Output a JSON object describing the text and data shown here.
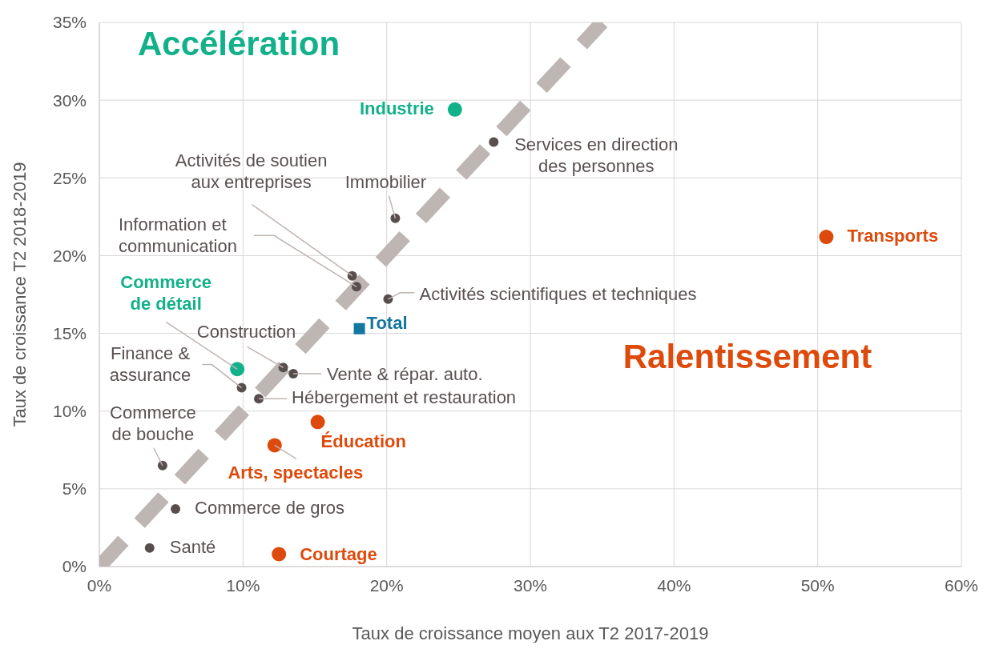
{
  "chart_data": {
    "type": "scatter",
    "xlabel": "Taux de croissance moyen aux T2 2017-2019",
    "ylabel": "Taux de croissance T2 2018-2019",
    "xlim": [
      0,
      60
    ],
    "xticks": [
      {
        "value": 0,
        "label": "0%"
      },
      {
        "value": 10,
        "label": "10%"
      },
      {
        "value": 20,
        "label": "20%"
      },
      {
        "value": 30,
        "label": "30%"
      },
      {
        "value": 40,
        "label": "40%"
      },
      {
        "value": 50,
        "label": "50%"
      },
      {
        "value": 60,
        "label": "60%"
      }
    ],
    "ylim": [
      0,
      35
    ],
    "yticks": [
      {
        "value": 0,
        "label": "0%"
      },
      {
        "value": 5,
        "label": "5%"
      },
      {
        "value": 10,
        "label": "10%"
      },
      {
        "value": 15,
        "label": "15%"
      },
      {
        "value": 20,
        "label": "20%"
      },
      {
        "value": 25,
        "label": "25%"
      },
      {
        "value": 30,
        "label": "30%"
      },
      {
        "value": 35,
        "label": "35%"
      }
    ],
    "grid": true,
    "legend": false,
    "series": [
      {
        "type": "line",
        "color": "#bdb6b3",
        "line_style": "dashed",
        "marker": "none",
        "x": [
          0,
          35
        ],
        "values": [
          0,
          35
        ]
      },
      {
        "color": "#13b18a",
        "marker": "circle",
        "x": [
          24.75,
          9.6
        ],
        "values": [
          29.4,
          12.7
        ]
      },
      {
        "color": "#dd4a0b",
        "marker": "circle",
        "x": [
          50.6,
          15.2,
          12.2,
          12.5
        ],
        "values": [
          21.2,
          9.3,
          7.8,
          0.8
        ]
      },
      {
        "color": "#584e4e",
        "marker": "circle",
        "x": [
          27.45,
          20.6,
          17.6,
          17.9,
          20.1,
          12.8,
          13.5,
          9.9,
          11.1,
          4.4,
          5.3,
          3.5
        ],
        "values": [
          27.3,
          22.4,
          18.7,
          18.0,
          17.2,
          12.8,
          12.4,
          11.5,
          10.8,
          6.5,
          3.7,
          1.2
        ]
      },
      {
        "color": "#14779d",
        "marker": "square",
        "x": [
          18.1
        ],
        "values": [
          15.3
        ]
      }
    ],
    "annotations": [
      "Accélération",
      "Ralentissement",
      {
        "text": "Industrie",
        "x": 24.75,
        "y": 29.4
      },
      {
        "text": "Services en direction des personnes",
        "x": 27.45,
        "y": 27.3
      },
      {
        "text": "Immobilier",
        "x": 20.6,
        "y": 22.4
      },
      {
        "text": "Activités de soutien aux entreprises",
        "x": 17.6,
        "y": 18.7
      },
      {
        "text": "Information et communication",
        "x": 17.9,
        "y": 18.0
      },
      {
        "text": "Activités scientifiques et techniques",
        "x": 20.1,
        "y": 17.2
      },
      {
        "text": "Total",
        "x": 18.1,
        "y": 15.3
      },
      {
        "text": "Commerce de détail",
        "x": 9.6,
        "y": 12.7
      },
      {
        "text": "Construction",
        "x": 12.8,
        "y": 12.8
      },
      {
        "text": "Vente & répar. auto.",
        "x": 13.5,
        "y": 12.4
      },
      {
        "text": "Finance & assurance",
        "x": 9.9,
        "y": 11.5
      },
      {
        "text": "Hébergement et restauration",
        "x": 11.1,
        "y": 10.8
      },
      {
        "text": "Commerce de bouche",
        "x": 4.4,
        "y": 6.5
      },
      {
        "text": "Éducation",
        "x": 15.2,
        "y": 9.3
      },
      {
        "text": "Arts, spectacles",
        "x": 12.2,
        "y": 7.8
      },
      {
        "text": "Commerce de gros",
        "x": 5.3,
        "y": 3.7
      },
      {
        "text": "Santé",
        "x": 3.5,
        "y": 1.2
      },
      {
        "text": "Courtage",
        "x": 12.5,
        "y": 0.8
      },
      {
        "text": "Transports",
        "x": 50.6,
        "y": 21.2
      }
    ]
  }
}
